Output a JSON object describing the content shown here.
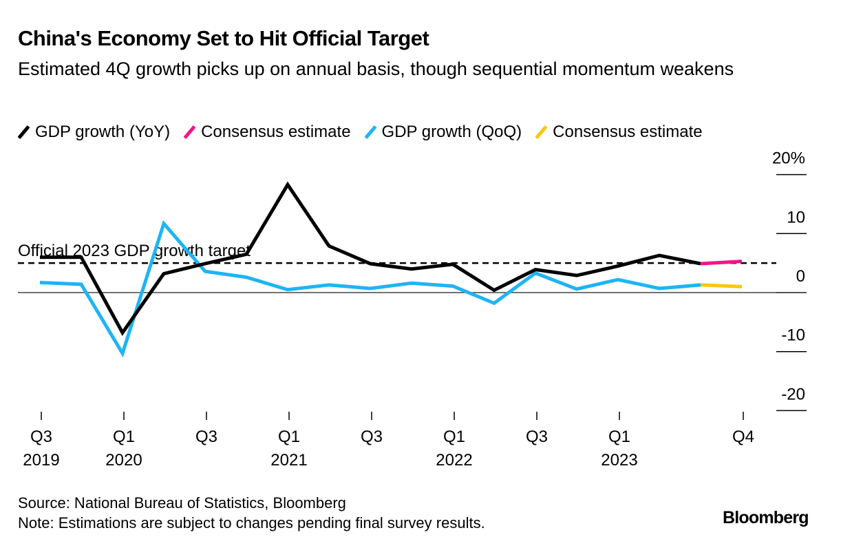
{
  "chart_data": {
    "type": "line",
    "title": "China's Economy Set to Hit Official Target",
    "subtitle": "Estimated 4Q growth picks up on annual basis, though sequential momentum weakens",
    "x": [
      "Q3 2019",
      "Q4 2019",
      "Q1 2020",
      "Q2 2020",
      "Q3 2020",
      "Q4 2020",
      "Q1 2021",
      "Q2 2021",
      "Q3 2021",
      "Q4 2021",
      "Q1 2022",
      "Q2 2022",
      "Q3 2022",
      "Q4 2022",
      "Q1 2023",
      "Q2 2023",
      "Q3 2023",
      "Q4 2023"
    ],
    "series": [
      {
        "name": "GDP growth (YoY)",
        "color": "#000000",
        "values": [
          6.0,
          6.0,
          -6.8,
          3.2,
          4.9,
          6.5,
          18.3,
          7.9,
          4.9,
          4.0,
          4.8,
          0.4,
          3.9,
          2.9,
          4.5,
          6.3,
          4.9,
          null
        ]
      },
      {
        "name": "Consensus estimate",
        "color": "#f2148c",
        "values": [
          null,
          null,
          null,
          null,
          null,
          null,
          null,
          null,
          null,
          null,
          null,
          null,
          null,
          null,
          null,
          null,
          4.9,
          5.3
        ]
      },
      {
        "name": "GDP growth (QoQ)",
        "color": "#1eb4f5",
        "values": [
          1.7,
          1.4,
          -10.3,
          11.7,
          3.6,
          2.6,
          0.5,
          1.3,
          0.7,
          1.6,
          1.1,
          -1.8,
          3.3,
          0.6,
          2.2,
          0.7,
          1.3,
          null
        ]
      },
      {
        "name": "Consensus estimate",
        "color": "#fcc60f",
        "values": [
          null,
          null,
          null,
          null,
          null,
          null,
          null,
          null,
          null,
          null,
          null,
          null,
          null,
          null,
          null,
          null,
          1.3,
          1.0
        ]
      }
    ],
    "target": {
      "label": "Official 2023 GDP growth target",
      "value": 5.0
    },
    "y_ticks": [
      "20%",
      "10",
      "0",
      "-10",
      "-20"
    ],
    "y_tick_values": [
      20,
      10,
      0,
      -10,
      -20
    ],
    "ylim": [
      -20,
      20
    ],
    "x_tick_labels": [
      {
        "index": 0,
        "q": "Q3",
        "year": "2019"
      },
      {
        "index": 2,
        "q": "Q1",
        "year": "2020"
      },
      {
        "index": 4,
        "q": "Q3",
        "year": ""
      },
      {
        "index": 6,
        "q": "Q1",
        "year": "2021"
      },
      {
        "index": 8,
        "q": "Q3",
        "year": ""
      },
      {
        "index": 10,
        "q": "Q1",
        "year": "2022"
      },
      {
        "index": 12,
        "q": "Q3",
        "year": ""
      },
      {
        "index": 14,
        "q": "Q1",
        "year": "2023"
      },
      {
        "index": 17,
        "q": "Q4",
        "year": ""
      }
    ],
    "legend": "top-left",
    "xlabel": "",
    "ylabel": ""
  },
  "footer": {
    "source": "Source: National Bureau of Statistics, Bloomberg",
    "note": "Note: Estimations are subject to changes pending final survey results.",
    "brand": "Bloomberg"
  }
}
